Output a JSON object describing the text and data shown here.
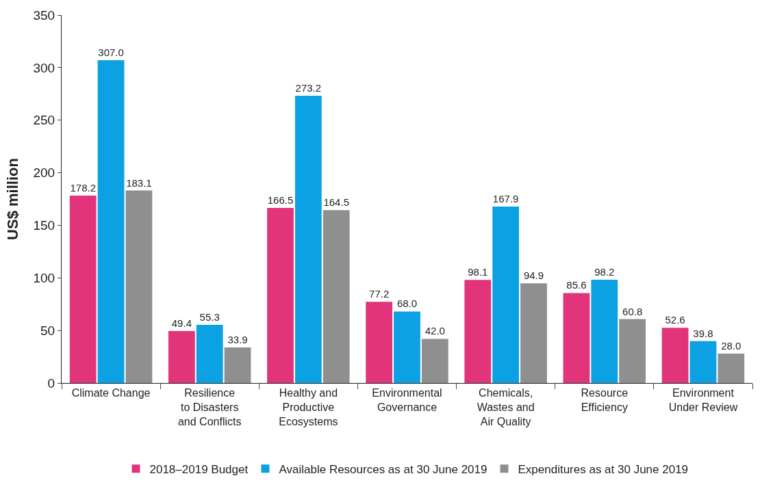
{
  "chart_data": {
    "type": "bar",
    "ylabel": "US$ million",
    "categories": [
      "Climate Change",
      "Resilience\nto Disasters\nand Conflicts",
      "Healthy and\nProductive\nEcosystems",
      "Environmental\nGovernance",
      "Chemicals,\nWastes and\nAir Quality",
      "Resource\nEfficiency",
      "Environment\nUnder Review"
    ],
    "series": [
      {
        "name": "2018–2019 Budget",
        "color": "#e2347a",
        "values": [
          178.2,
          49.4,
          166.5,
          77.2,
          98.1,
          85.6,
          52.6
        ],
        "value_labels": [
          "178.2",
          "49.4",
          "166.5",
          "77.2",
          "98.1",
          "85.6",
          "52.6"
        ]
      },
      {
        "name": "Available Resources as at 30 June 2019",
        "color": "#0ba1e2",
        "values": [
          307.0,
          55.3,
          273.2,
          68.0,
          167.9,
          98.2,
          39.8
        ],
        "value_labels": [
          "307.0",
          "55.3",
          "273.2",
          "68.0",
          "167.9",
          "98.2",
          "39.8"
        ]
      },
      {
        "name": "Expenditures as at 30 June 2019",
        "color": "#8f8f8f",
        "values": [
          183.1,
          33.9,
          164.5,
          42.0,
          94.9,
          60.8,
          28.0
        ],
        "value_labels": [
          "183.1",
          "33.9",
          "164.5",
          "42.0",
          "94.9",
          "60.8",
          "28.0"
        ]
      }
    ],
    "ylim": [
      0,
      350
    ],
    "yticks": [
      0,
      50,
      100,
      150,
      200,
      250,
      300,
      350
    ],
    "legend": "bottom"
  }
}
